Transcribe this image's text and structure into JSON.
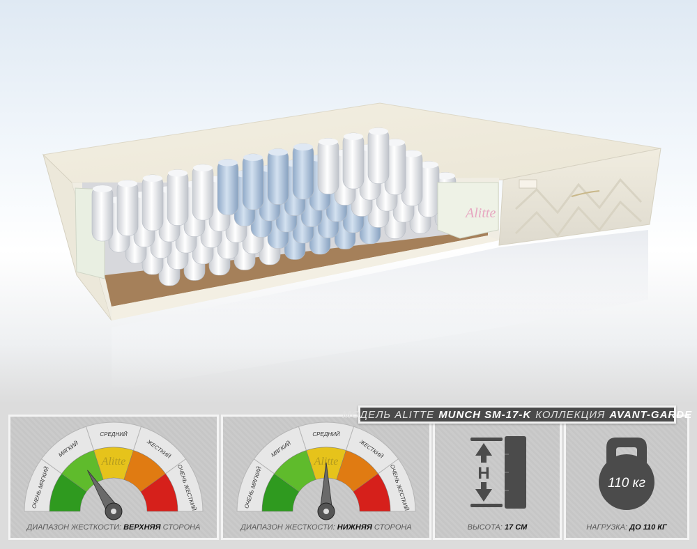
{
  "brand": "Alitte",
  "banner": {
    "model_label": "Модель Alitte",
    "model_name": "Munch SM-17-K",
    "collection_label": "Коллекция",
    "collection_name": "Avant-Garde"
  },
  "gauge_labels": [
    "Очень мягкий",
    "Мягкий",
    "Средний",
    "Жесткий",
    "Очень жесткий"
  ],
  "gauge_colors": [
    "#2f9a1f",
    "#5fbb2c",
    "#e6c31b",
    "#e07b12",
    "#d6201b"
  ],
  "gauges": [
    {
      "caption_prefix": "Диапазон жесткости:",
      "side": "Верхняя",
      "caption_suffix": "сторона",
      "needle_position": 0.32
    },
    {
      "caption_prefix": "Диапазон жесткости:",
      "side": "Нижняя",
      "caption_suffix": "сторона",
      "needle_position": 0.5
    }
  ],
  "height": {
    "label": "Высота:",
    "value": "17 см",
    "icon": "ruler-height-icon",
    "icon_letter": "H"
  },
  "load": {
    "label": "Нагрузка:",
    "value": "до 110 кг",
    "weight_text": "110 кг",
    "icon": "kettlebell-icon"
  }
}
